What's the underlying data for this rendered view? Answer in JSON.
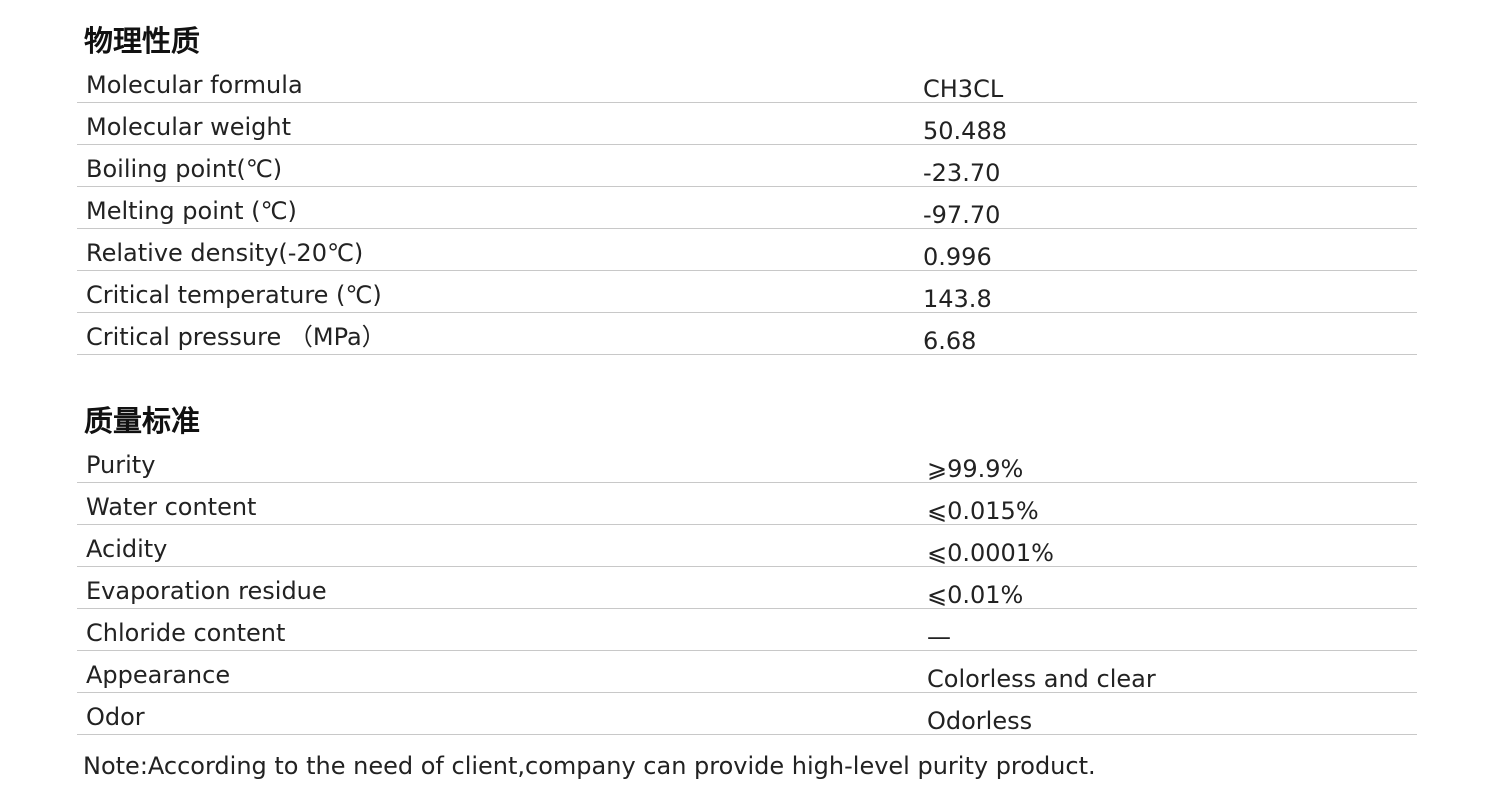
{
  "physical": {
    "title": "物理性质",
    "rows": [
      {
        "label": "Molecular formula",
        "value": "CH3CL"
      },
      {
        "label": "Molecular weight",
        "value": "50.488"
      },
      {
        "label": "Boiling point(℃)",
        "value": "-23.70"
      },
      {
        "label": "Melting point (℃)",
        "value": "-97.70"
      },
      {
        "label": "Relative density(-20℃)",
        "value": "0.996"
      },
      {
        "label": "Critical temperature (℃)",
        "value": "143.8"
      },
      {
        "label": "Critical pressure （MPa）",
        "value": "6.68"
      }
    ]
  },
  "quality": {
    "title": "质量标准",
    "rows": [
      {
        "label": "Purity",
        "value": "⩾99.9%"
      },
      {
        "label": "Water content",
        "value": "⩽0.015%"
      },
      {
        "label": "Acidity",
        "value": "⩽0.0001%"
      },
      {
        "label": "Evaporation residue",
        "value": "⩽0.01%"
      },
      {
        "label": "Chloride content",
        "value": "—"
      },
      {
        "label": "Appearance",
        "value": "Colorless and clear"
      },
      {
        "label": "Odor",
        "value": "Odorless"
      }
    ]
  },
  "note": "Note:According to the need of client,company can provide high-level purity product."
}
